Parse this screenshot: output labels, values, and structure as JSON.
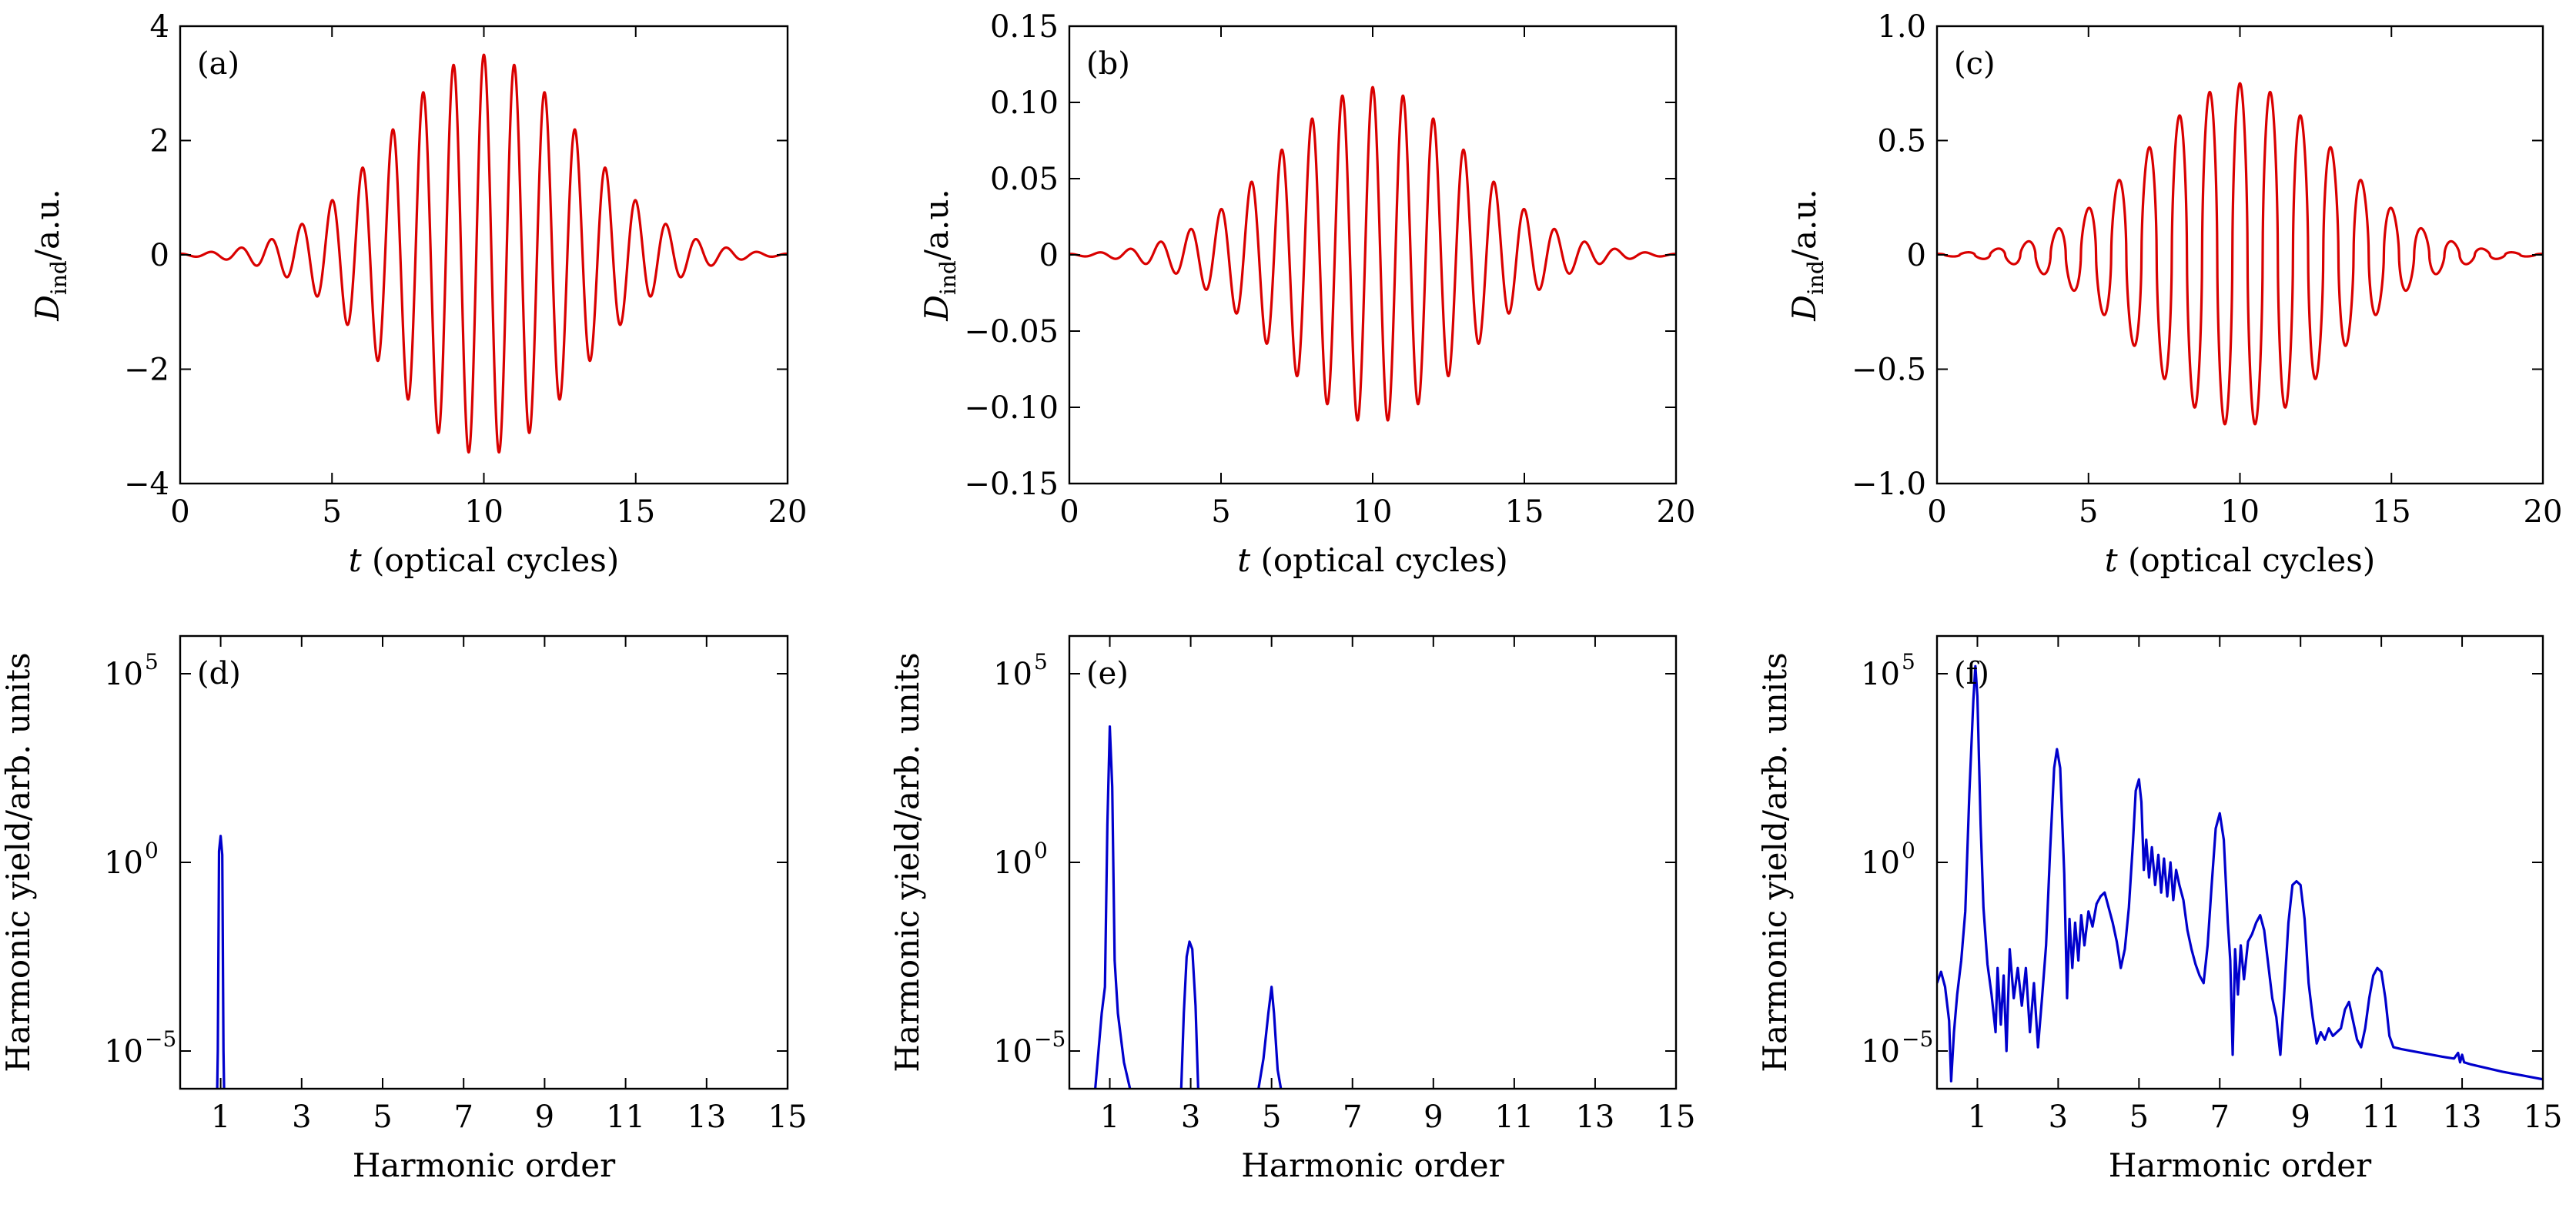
{
  "chart_data": [
    {
      "id": "a",
      "panel_label": "(a)",
      "type": "line",
      "xlabel_var": "t",
      "xlabel_rest": " (optical cycles)",
      "ylabel_main": "D",
      "ylabel_sub": "ind",
      "ylabel_rest": "/a.u.",
      "xlim": [
        0,
        20
      ],
      "ylim": [
        -4,
        4
      ],
      "xticks": [
        0,
        5,
        10,
        15,
        20
      ],
      "xtick_labels": [
        "0",
        "5",
        "10",
        "15",
        "20"
      ],
      "yticks": [
        -4,
        -2,
        0,
        2,
        4
      ],
      "ytick_labels": [
        "−4",
        "−2",
        "0",
        "2",
        "4"
      ],
      "series": [
        {
          "color": "#d90000",
          "signal": {
            "amplitude": 3.5,
            "center": 10,
            "width": 10,
            "phase": 0,
            "sharpness": 0
          }
        }
      ]
    },
    {
      "id": "b",
      "panel_label": "(b)",
      "type": "line",
      "xlabel_var": "t",
      "xlabel_rest": " (optical cycles)",
      "ylabel_main": "D",
      "ylabel_sub": "ind",
      "ylabel_rest": "/a.u.",
      "xlim": [
        0,
        20
      ],
      "ylim": [
        -0.15,
        0.15
      ],
      "xticks": [
        0,
        5,
        10,
        15,
        20
      ],
      "xtick_labels": [
        "0",
        "5",
        "10",
        "15",
        "20"
      ],
      "yticks": [
        -0.15,
        -0.1,
        -0.05,
        0,
        0.05,
        0.1,
        0.15
      ],
      "ytick_labels": [
        "−0.15",
        "−0.10",
        "−0.05",
        "0",
        "0.05",
        "0.10",
        "0.15"
      ],
      "series": [
        {
          "color": "#d90000",
          "signal": {
            "amplitude": 0.11,
            "center": 10,
            "width": 10,
            "phase": 0,
            "sharpness": 0
          }
        }
      ]
    },
    {
      "id": "c",
      "panel_label": "(c)",
      "type": "line",
      "xlabel_var": "t",
      "xlabel_rest": " (optical cycles)",
      "ylabel_main": "D",
      "ylabel_sub": "ind",
      "ylabel_rest": "/a.u.",
      "xlim": [
        0,
        20
      ],
      "ylim": [
        -1.0,
        1.0
      ],
      "xticks": [
        0,
        5,
        10,
        15,
        20
      ],
      "xtick_labels": [
        "0",
        "5",
        "10",
        "15",
        "20"
      ],
      "yticks": [
        -1.0,
        -0.5,
        0,
        0.5,
        1.0
      ],
      "ytick_labels": [
        "−1.0",
        "−0.5",
        "0",
        "0.5",
        "1.0"
      ],
      "series": [
        {
          "color": "#d90000",
          "signal": {
            "amplitude": 0.75,
            "center": 10,
            "width": 10,
            "phase": 0,
            "sharpness": 1.2
          }
        }
      ]
    },
    {
      "id": "d",
      "panel_label": "(d)",
      "type": "line",
      "yscale": "log",
      "xlabel": "Harmonic order",
      "ylabel": "Harmonic yield/arb. units",
      "xlim": [
        0,
        15
      ],
      "ylim_log10": [
        -6,
        6
      ],
      "xticks": [
        1,
        3,
        5,
        7,
        9,
        11,
        13,
        15
      ],
      "xtick_labels": [
        "1",
        "3",
        "5",
        "7",
        "9",
        "11",
        "13",
        "15"
      ],
      "yticks_log10": [
        -5,
        0,
        5
      ],
      "ytick_base": "10",
      "ytick_exps": [
        "−5",
        "0",
        "5"
      ],
      "series": [
        {
          "color": "#0000cc",
          "log10_points": [
            [
              0.9,
              -7
            ],
            [
              0.93,
              -5
            ],
            [
              0.96,
              0.3
            ],
            [
              1.0,
              0.7
            ],
            [
              1.04,
              0.2
            ],
            [
              1.07,
              -5
            ],
            [
              1.1,
              -7
            ]
          ]
        }
      ]
    },
    {
      "id": "e",
      "panel_label": "(e)",
      "type": "line",
      "yscale": "log",
      "xlabel": "Harmonic order",
      "ylabel": "Harmonic yield/arb. units",
      "xlim": [
        0,
        15
      ],
      "ylim_log10": [
        -6,
        6
      ],
      "xticks": [
        1,
        3,
        5,
        7,
        9,
        11,
        13,
        15
      ],
      "xtick_labels": [
        "1",
        "3",
        "5",
        "7",
        "9",
        "11",
        "13",
        "15"
      ],
      "yticks_log10": [
        -5,
        0,
        5
      ],
      "ytick_base": "10",
      "ytick_exps": [
        "−5",
        "0",
        "5"
      ],
      "series": [
        {
          "color": "#0000cc",
          "log10_points": [
            [
              0.1,
              -6.5
            ],
            [
              0.6,
              -6.5
            ],
            [
              0.8,
              -4
            ],
            [
              0.88,
              -3.3
            ],
            [
              0.94,
              1
            ],
            [
              1.0,
              3.6
            ],
            [
              1.06,
              2
            ],
            [
              1.12,
              -2.6
            ],
            [
              1.2,
              -4
            ],
            [
              1.35,
              -5.3
            ],
            [
              1.5,
              -6
            ],
            [
              1.6,
              -6.5
            ],
            [
              2.75,
              -6.5
            ],
            [
              2.83,
              -4
            ],
            [
              2.9,
              -2.5
            ],
            [
              2.97,
              -2.1
            ],
            [
              3.04,
              -2.3
            ],
            [
              3.12,
              -3.8
            ],
            [
              3.2,
              -6.5
            ],
            [
              4.6,
              -6.5
            ],
            [
              4.8,
              -5.2
            ],
            [
              4.92,
              -4
            ],
            [
              5.0,
              -3.3
            ],
            [
              5.06,
              -4
            ],
            [
              5.15,
              -5.5
            ],
            [
              5.28,
              -6.3
            ],
            [
              5.4,
              -6.5
            ]
          ]
        }
      ]
    },
    {
      "id": "f",
      "panel_label": "(f)",
      "type": "line",
      "yscale": "log",
      "xlabel": "Harmonic order",
      "ylabel": "Harmonic yield/arb. units",
      "xlim": [
        0,
        15
      ],
      "ylim_log10": [
        -6,
        6
      ],
      "xticks": [
        1,
        3,
        5,
        7,
        9,
        11,
        13,
        15
      ],
      "xtick_labels": [
        "1",
        "3",
        "5",
        "7",
        "9",
        "11",
        "13",
        "15"
      ],
      "yticks_log10": [
        -5,
        0,
        5
      ],
      "ytick_base": "10",
      "ytick_exps": [
        "−5",
        "0",
        "5"
      ],
      "series": [
        {
          "color": "#0000cc",
          "log10_points": [
            [
              0.0,
              -3.2
            ],
            [
              0.1,
              -2.9
            ],
            [
              0.2,
              -3.3
            ],
            [
              0.3,
              -4.2
            ],
            [
              0.35,
              -5.8
            ],
            [
              0.42,
              -4.5
            ],
            [
              0.5,
              -3.5
            ],
            [
              0.6,
              -2.6
            ],
            [
              0.7,
              -1.3
            ],
            [
              0.8,
              1.8
            ],
            [
              0.9,
              4.3
            ],
            [
              0.95,
              5.2
            ],
            [
              1.0,
              4.4
            ],
            [
              1.08,
              1
            ],
            [
              1.15,
              -1.2
            ],
            [
              1.25,
              -2.7
            ],
            [
              1.35,
              -3.5
            ],
            [
              1.45,
              -4.5
            ],
            [
              1.5,
              -2.8
            ],
            [
              1.58,
              -4.3
            ],
            [
              1.65,
              -3
            ],
            [
              1.72,
              -5
            ],
            [
              1.8,
              -2.3
            ],
            [
              1.9,
              -3.6
            ],
            [
              2.0,
              -2.8
            ],
            [
              2.1,
              -3.8
            ],
            [
              2.2,
              -2.8
            ],
            [
              2.3,
              -4.5
            ],
            [
              2.4,
              -3.2
            ],
            [
              2.5,
              -4.9
            ],
            [
              2.6,
              -3.6
            ],
            [
              2.7,
              -2.2
            ],
            [
              2.8,
              0.3
            ],
            [
              2.9,
              2.5
            ],
            [
              2.97,
              3
            ],
            [
              3.05,
              2.5
            ],
            [
              3.15,
              -0.3
            ],
            [
              3.22,
              -3.6
            ],
            [
              3.28,
              -1.5
            ],
            [
              3.35,
              -2.8
            ],
            [
              3.42,
              -1.6
            ],
            [
              3.5,
              -2.6
            ],
            [
              3.57,
              -1.4
            ],
            [
              3.65,
              -2.2
            ],
            [
              3.75,
              -1.3
            ],
            [
              3.85,
              -1.7
            ],
            [
              3.95,
              -1.1
            ],
            [
              4.05,
              -0.9
            ],
            [
              4.15,
              -0.8
            ],
            [
              4.25,
              -1.2
            ],
            [
              4.35,
              -1.6
            ],
            [
              4.45,
              -2.1
            ],
            [
              4.55,
              -2.8
            ],
            [
              4.65,
              -2.3
            ],
            [
              4.75,
              -1.2
            ],
            [
              4.85,
              0.5
            ],
            [
              4.92,
              1.9
            ],
            [
              5.0,
              2.2
            ],
            [
              5.06,
              1.6
            ],
            [
              5.12,
              -0.2
            ],
            [
              5.18,
              0.6
            ],
            [
              5.25,
              -0.4
            ],
            [
              5.32,
              0.4
            ],
            [
              5.4,
              -0.6
            ],
            [
              5.48,
              0.2
            ],
            [
              5.55,
              -0.8
            ],
            [
              5.62,
              0.1
            ],
            [
              5.7,
              -0.9
            ],
            [
              5.78,
              0
            ],
            [
              5.85,
              -1
            ],
            [
              5.92,
              -0.2
            ],
            [
              6.0,
              -0.6
            ],
            [
              6.1,
              -1
            ],
            [
              6.2,
              -1.8
            ],
            [
              6.3,
              -2.3
            ],
            [
              6.4,
              -2.7
            ],
            [
              6.5,
              -3
            ],
            [
              6.6,
              -3.2
            ],
            [
              6.7,
              -2.2
            ],
            [
              6.8,
              -0.6
            ],
            [
              6.9,
              0.9
            ],
            [
              7.0,
              1.3
            ],
            [
              7.1,
              0.6
            ],
            [
              7.2,
              -1.6
            ],
            [
              7.26,
              -2.6
            ],
            [
              7.32,
              -5.1
            ],
            [
              7.38,
              -2.3
            ],
            [
              7.45,
              -3.5
            ],
            [
              7.52,
              -2.2
            ],
            [
              7.6,
              -3.1
            ],
            [
              7.7,
              -2.1
            ],
            [
              7.8,
              -1.9
            ],
            [
              7.9,
              -1.6
            ],
            [
              8.0,
              -1.4
            ],
            [
              8.1,
              -1.8
            ],
            [
              8.2,
              -2.7
            ],
            [
              8.3,
              -3.6
            ],
            [
              8.4,
              -4.1
            ],
            [
              8.5,
              -5.1
            ],
            [
              8.6,
              -3.4
            ],
            [
              8.7,
              -1.6
            ],
            [
              8.8,
              -0.6
            ],
            [
              8.9,
              -0.5
            ],
            [
              9.0,
              -0.6
            ],
            [
              9.1,
              -1.5
            ],
            [
              9.2,
              -3.2
            ],
            [
              9.3,
              -4.1
            ],
            [
              9.4,
              -4.8
            ],
            [
              9.5,
              -4.5
            ],
            [
              9.6,
              -4.7
            ],
            [
              9.7,
              -4.4
            ],
            [
              9.8,
              -4.6
            ],
            [
              9.9,
              -4.5
            ],
            [
              10.0,
              -4.4
            ],
            [
              10.1,
              -3.9
            ],
            [
              10.2,
              -3.7
            ],
            [
              10.3,
              -4.2
            ],
            [
              10.4,
              -4.7
            ],
            [
              10.5,
              -4.9
            ],
            [
              10.6,
              -4.4
            ],
            [
              10.7,
              -3.6
            ],
            [
              10.8,
              -3
            ],
            [
              10.9,
              -2.8
            ],
            [
              11.0,
              -2.9
            ],
            [
              11.1,
              -3.6
            ],
            [
              11.2,
              -4.6
            ],
            [
              11.3,
              -4.9
            ],
            [
              11.5,
              -4.95
            ],
            [
              12.0,
              -5.05
            ],
            [
              12.5,
              -5.15
            ],
            [
              12.8,
              -5.2
            ],
            [
              12.9,
              -5.05
            ],
            [
              12.95,
              -5.3
            ],
            [
              13.0,
              -5.1
            ],
            [
              13.05,
              -5.3
            ],
            [
              13.2,
              -5.35
            ],
            [
              13.6,
              -5.45
            ],
            [
              14.0,
              -5.55
            ],
            [
              14.5,
              -5.65
            ],
            [
              15.0,
              -5.75
            ]
          ]
        }
      ]
    }
  ]
}
